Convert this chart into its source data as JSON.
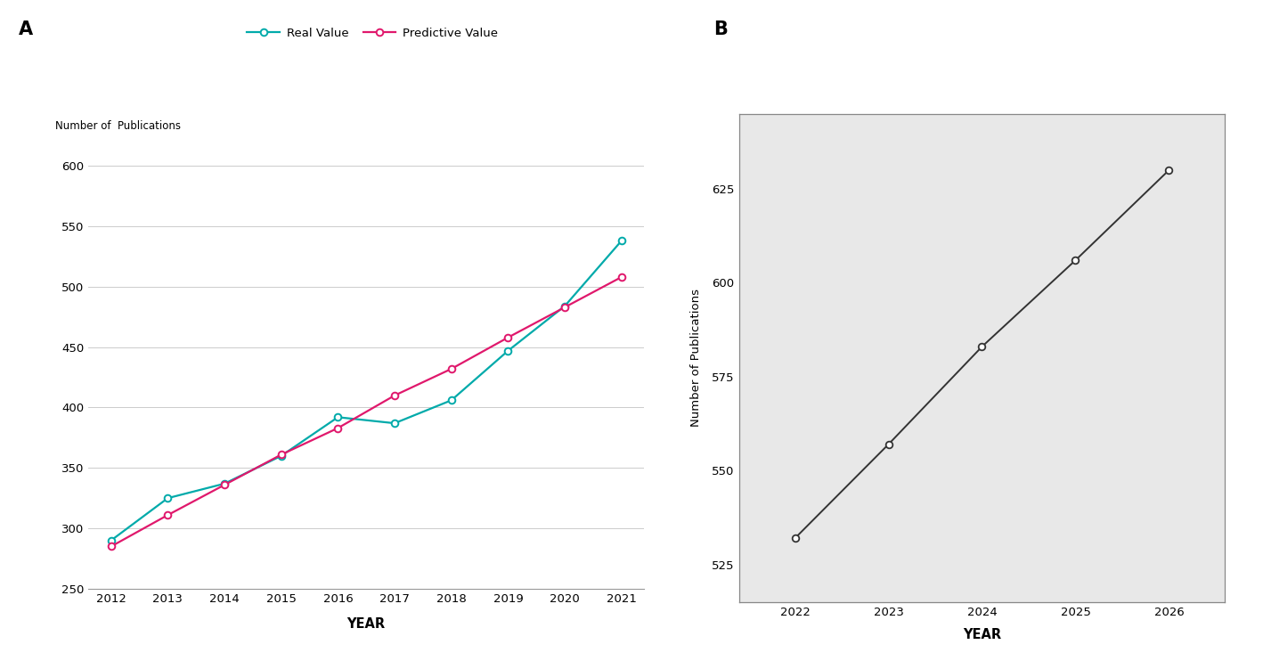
{
  "panel_A": {
    "years": [
      2012,
      2013,
      2014,
      2015,
      2016,
      2017,
      2018,
      2019,
      2020,
      2021
    ],
    "real_values": [
      290,
      325,
      337,
      360,
      392,
      387,
      406,
      447,
      484,
      538
    ],
    "pred_values": [
      285,
      311,
      336,
      361,
      383,
      410,
      432,
      458,
      483,
      508
    ],
    "real_color": "#00AAAA",
    "pred_color": "#E0186C",
    "real_label": "Real Value",
    "pred_label": "Predictive Value",
    "ylabel": "Number of  Publications",
    "xlabel": "YEAR",
    "ylim": [
      250,
      610
    ],
    "yticks": [
      250,
      300,
      350,
      400,
      450,
      500,
      550,
      600
    ],
    "panel_label": "A"
  },
  "panel_B": {
    "years": [
      2022,
      2023,
      2024,
      2025,
      2026
    ],
    "values": [
      532,
      557,
      583,
      606,
      630
    ],
    "line_color": "#333333",
    "ylabel": "Number of Publications",
    "xlabel": "YEAR",
    "ylim": [
      515,
      645
    ],
    "yticks": [
      525,
      550,
      575,
      600,
      625
    ],
    "bg_color": "#E8E8E8",
    "panel_label": "B"
  },
  "fig_bg": "#FFFFFF"
}
